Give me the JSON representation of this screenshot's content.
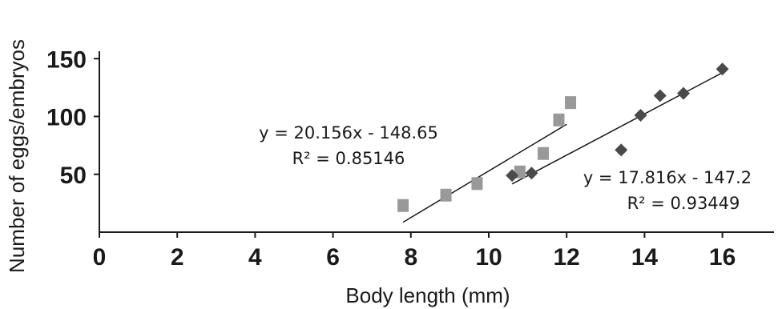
{
  "chart_data": {
    "type": "scatter",
    "title": "",
    "xlabel": "Body length (mm)",
    "ylabel": "Number of eggs/embryos",
    "xlim": [
      0,
      17.5
    ],
    "ylim": [
      0,
      150
    ],
    "xticks": [
      0,
      2,
      4,
      6,
      8,
      10,
      12,
      14,
      16
    ],
    "yticks": [
      50,
      100,
      150
    ],
    "grid": false,
    "series": [
      {
        "marker": "square",
        "color": "#999999",
        "x": [
          7.8,
          8.9,
          9.7,
          10.8,
          11.4,
          11.8,
          12.1
        ],
        "y": [
          23,
          32,
          42,
          52,
          68,
          97,
          112
        ],
        "trendline": {
          "slope": 20.156,
          "intercept": -148.65,
          "x_range": [
            7.8,
            12.0
          ],
          "equation": "y = 20.156x - 148.65",
          "r2": "R² = 0.85146"
        }
      },
      {
        "marker": "diamond",
        "color": "#4a4a4a",
        "x": [
          10.6,
          11.1,
          13.4,
          13.9,
          14.4,
          15.0,
          16.0
        ],
        "y": [
          49,
          51,
          71,
          101,
          118,
          120,
          141
        ],
        "trendline": {
          "slope": 17.816,
          "intercept": -147.2,
          "x_range": [
            10.6,
            16.0
          ],
          "equation": "y = 17.816x - 147.2",
          "r2": "R² = 0.93449"
        }
      }
    ]
  }
}
